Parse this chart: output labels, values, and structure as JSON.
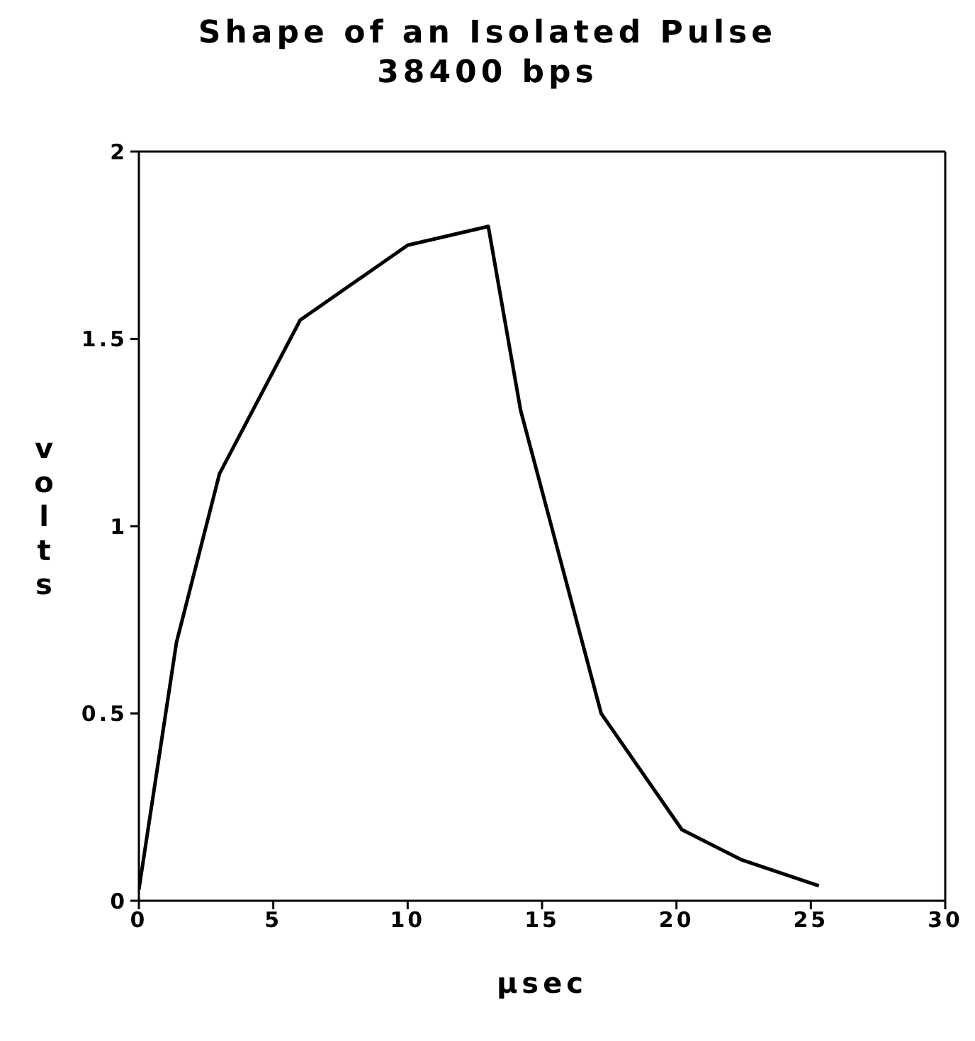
{
  "chart_data": {
    "type": "line",
    "title": "Shape of an Isolated Pulse",
    "subtitle": "38400 bps",
    "xlabel": "µsec",
    "ylabel": "volts",
    "x": [
      0,
      1.4,
      3,
      6,
      10,
      13,
      14.2,
      17.2,
      20.2,
      22.4,
      25.3
    ],
    "series": [
      {
        "color": "#000000",
        "values": [
          0.03,
          0.69,
          1.14,
          1.55,
          1.75,
          1.8,
          1.31,
          0.5,
          0.19,
          0.11,
          0.04
        ]
      }
    ],
    "xlim": [
      0,
      30
    ],
    "xticks": [
      0,
      5,
      10,
      15,
      20,
      25,
      30
    ],
    "ylim": [
      0,
      2
    ],
    "yticks": [
      0,
      0.5,
      1,
      1.5,
      2
    ],
    "marker": "none",
    "line_style": "solid"
  }
}
